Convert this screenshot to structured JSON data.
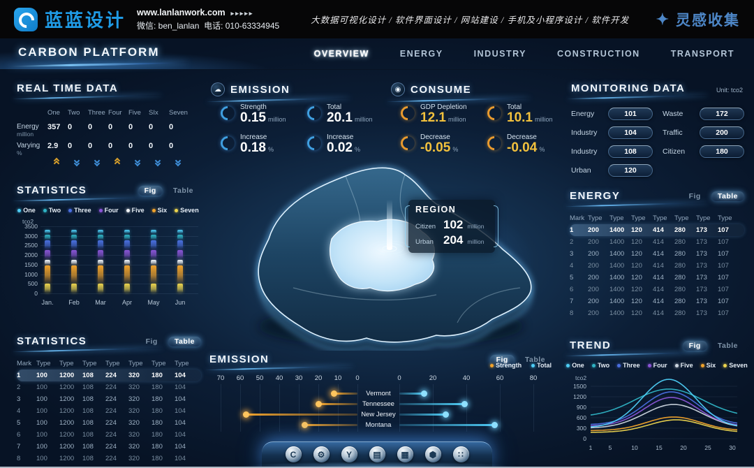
{
  "header": {
    "brand": "蓝蓝设计",
    "website": "www.lanlanwork.com",
    "arrows": "▸▸▸▸▸",
    "wechat": "微信: ben_lanlan",
    "phone": "电话: 010-63334945",
    "services": "大数据可视化设计 / 软件界面设计 / 网站建设 / 手机及小程序设计 / 软件开发",
    "collect": "灵感收集",
    "spark_icon": "✦"
  },
  "nav": {
    "title": "CARBON PLATFORM",
    "items": [
      {
        "label": "OVERVIEW",
        "active": true
      },
      {
        "label": "ENERGY",
        "active": false
      },
      {
        "label": "INDUSTRY",
        "active": false
      },
      {
        "label": "CONSTRUCTION",
        "active": false
      },
      {
        "label": "TRANSPORT",
        "active": false
      }
    ]
  },
  "realtime": {
    "title": "REAL TIME DATA",
    "columns": [
      "One",
      "Two",
      "Three",
      "Four",
      "Five",
      "SIx",
      "Seven"
    ],
    "rows": [
      {
        "label": "Energy",
        "unit": "million",
        "values": [
          "357",
          "0",
          "0",
          "0",
          "0",
          "0",
          "0"
        ]
      },
      {
        "label": "Varying",
        "unit": "%",
        "values": [
          "2.9",
          "0",
          "0",
          "0",
          "0",
          "0",
          "0"
        ]
      }
    ],
    "trends": [
      "up",
      "down",
      "down",
      "up",
      "down",
      "down",
      "down"
    ]
  },
  "statistics_fig": {
    "title": "STATISTICS",
    "fig": "Fig",
    "table": "Table",
    "active": "fig"
  },
  "statistics_table": {
    "title": "STATISTICS",
    "fig": "Fig",
    "table": "Table",
    "active": "table",
    "headers": [
      "Mark",
      "Type",
      "Type",
      "Type",
      "Type",
      "Type",
      "Type",
      "Type"
    ],
    "rows": [
      [
        "1",
        "100",
        "1200",
        "108",
        "224",
        "320",
        "180",
        "104"
      ],
      [
        "2",
        "100",
        "1200",
        "108",
        "224",
        "320",
        "180",
        "104"
      ],
      [
        "3",
        "100",
        "1200",
        "108",
        "224",
        "320",
        "180",
        "104"
      ],
      [
        "4",
        "100",
        "1200",
        "108",
        "224",
        "320",
        "180",
        "104"
      ],
      [
        "5",
        "100",
        "1200",
        "108",
        "224",
        "320",
        "180",
        "104"
      ],
      [
        "6",
        "100",
        "1200",
        "108",
        "224",
        "320",
        "180",
        "104"
      ],
      [
        "7",
        "100",
        "1200",
        "108",
        "224",
        "320",
        "180",
        "104"
      ],
      [
        "8",
        "100",
        "1200",
        "108",
        "224",
        "320",
        "180",
        "104"
      ]
    ]
  },
  "emission_stats": {
    "title": "EMISSION",
    "badge_icon": "☁",
    "stats": [
      {
        "label": "Strength",
        "value": "0.15",
        "unit": "million"
      },
      {
        "label": "Total",
        "value": "20.1",
        "unit": "million"
      },
      {
        "label": "Increase",
        "value": "0.18",
        "unit": "%"
      },
      {
        "label": "Increase",
        "value": "0.02",
        "unit": "%"
      }
    ]
  },
  "consume_stats": {
    "title": "CONSUME",
    "badge_icon": "◉",
    "stats": [
      {
        "label": "GDP Depletion",
        "value": "12.1",
        "unit": "million"
      },
      {
        "label": "Total",
        "value": "10.1",
        "unit": "million"
      },
      {
        "label": "Decrease",
        "value": "-0.05",
        "unit": "%"
      },
      {
        "label": "Decrease",
        "value": "-0.04",
        "unit": "%"
      }
    ]
  },
  "region_popup": {
    "title": "REGION",
    "rows": [
      {
        "label": "Citizen",
        "value": "102",
        "unit": "million"
      },
      {
        "label": "Urban",
        "value": "204",
        "unit": "million"
      }
    ]
  },
  "monitoring": {
    "title": "MONITORING DATA",
    "unit": "Unit: tco2",
    "left": [
      [
        "Energy",
        "101"
      ],
      [
        "Industry",
        "104"
      ],
      [
        "Industry",
        "108"
      ],
      [
        "Urban",
        "120"
      ]
    ],
    "right": [
      [
        "Waste",
        "172"
      ],
      [
        "Traffic",
        "200"
      ],
      [
        "Citizen",
        "180"
      ]
    ]
  },
  "energy_table": {
    "title": "ENERGY",
    "fig": "Fig",
    "table": "Table",
    "active": "table",
    "headers": [
      "Mark",
      "Type",
      "Type",
      "Type",
      "Type",
      "Type",
      "Type",
      "Type"
    ],
    "rows": [
      [
        "1",
        "200",
        "1400",
        "120",
        "414",
        "280",
        "173",
        "107"
      ],
      [
        "2",
        "200",
        "1400",
        "120",
        "414",
        "280",
        "173",
        "107"
      ],
      [
        "3",
        "200",
        "1400",
        "120",
        "414",
        "280",
        "173",
        "107"
      ],
      [
        "4",
        "200",
        "1400",
        "120",
        "414",
        "280",
        "173",
        "107"
      ],
      [
        "5",
        "200",
        "1400",
        "120",
        "414",
        "280",
        "173",
        "107"
      ],
      [
        "6",
        "200",
        "1400",
        "120",
        "414",
        "280",
        "173",
        "107"
      ],
      [
        "7",
        "200",
        "1400",
        "120",
        "414",
        "280",
        "173",
        "107"
      ],
      [
        "8",
        "200",
        "1400",
        "120",
        "414",
        "280",
        "173",
        "107"
      ]
    ]
  },
  "emission_chart_panel": {
    "title": "EMISSION",
    "fig": "Fig",
    "table": "Table",
    "active": "fig"
  },
  "trend_panel": {
    "title": "TREND",
    "fig": "Fig",
    "table": "Table",
    "active": "fig"
  },
  "dock": {
    "icons": [
      {
        "name": "hex-c-icon",
        "glyph": "C"
      },
      {
        "name": "gear-icon",
        "glyph": "⚙"
      },
      {
        "name": "y-badge-icon",
        "glyph": "Y"
      },
      {
        "name": "building-icon",
        "glyph": "▤"
      },
      {
        "name": "monitor-chart-icon",
        "glyph": "▦"
      },
      {
        "name": "nut-icon",
        "glyph": "⬢"
      },
      {
        "name": "apps-grid-icon",
        "glyph": "∷"
      }
    ]
  },
  "chart_data": [
    {
      "id": "statistics_monthly",
      "type": "bar",
      "title": "STATISTICS",
      "ylabel": "tco2",
      "categories": [
        "Jan.",
        "Feb",
        "Mar",
        "Apr",
        "May",
        "Jun"
      ],
      "yticks": [
        0,
        500,
        1000,
        1500,
        2000,
        2500,
        3000,
        3500
      ],
      "ylim": [
        0,
        3500
      ],
      "grid": true,
      "legend_position": "top",
      "note": "Each month shows the same stacked segment column; segment = [low, high] in tco2",
      "series": [
        {
          "name": "One",
          "color": "#4ecdf5",
          "segment": [
            3130,
            3310
          ]
        },
        {
          "name": "Two",
          "color": "#2fb3c4",
          "segment": [
            2820,
            3070
          ]
        },
        {
          "name": "Three",
          "color": "#4a6fe0",
          "segment": [
            2320,
            2760
          ]
        },
        {
          "name": "Four",
          "color": "#8a55d6",
          "segment": [
            1820,
            2260
          ]
        },
        {
          "name": "Five",
          "color": "#f2f5f8",
          "segment": [
            1510,
            1760
          ]
        },
        {
          "name": "Six",
          "color": "#f0a22b",
          "segment": [
            560,
            1450
          ]
        },
        {
          "name": "Seven",
          "color": "#ecd44e",
          "segment": [
            30,
            500
          ]
        }
      ]
    },
    {
      "id": "emission_by_state",
      "type": "bar",
      "layout": "diverging",
      "title": "EMISSION",
      "categories": [
        "Vermont",
        "Tennessee",
        "New Jersey",
        "Montana"
      ],
      "series": [
        {
          "name": "Strength",
          "color": "#f0a22b",
          "values": [
            12,
            20,
            57,
            27
          ]
        },
        {
          "name": "Total",
          "color": "#4ecdf5",
          "values": [
            15,
            39,
            28,
            57
          ]
        }
      ],
      "left_axis_ticks": [
        70,
        60,
        50,
        40,
        30,
        20,
        10,
        0
      ],
      "right_axis_ticks": [
        0,
        20,
        40,
        60,
        80
      ]
    },
    {
      "id": "trend_curves",
      "type": "line",
      "title": "TREND",
      "ylabel": "tco2",
      "xticks": [
        1,
        5,
        10,
        15,
        20,
        25,
        30
      ],
      "yticks": [
        0,
        300,
        600,
        900,
        1200,
        1500
      ],
      "xlim": [
        1,
        31
      ],
      "ylim": [
        0,
        1800
      ],
      "note": "Bell curves; series described by gaussian fit read from figure",
      "series": [
        {
          "name": "One",
          "color": "#4ecdf5",
          "peak": 1700,
          "base": 320,
          "center": 17,
          "width": 5.5
        },
        {
          "name": "Two",
          "color": "#2fb3c4",
          "peak": 1420,
          "base": 620,
          "center": 17,
          "width": 7
        },
        {
          "name": "Three",
          "color": "#4a6fe0",
          "peak": 1340,
          "base": 400,
          "center": 17.5,
          "width": 5.5
        },
        {
          "name": "Four",
          "color": "#8a55d6",
          "peak": 1180,
          "base": 360,
          "center": 17.5,
          "width": 5.5
        },
        {
          "name": "Five",
          "color": "#cdd6e0",
          "peak": 980,
          "base": 300,
          "center": 18,
          "width": 6
        },
        {
          "name": "Six",
          "color": "#f0a22b",
          "peak": 620,
          "base": 230,
          "center": 18,
          "width": 5.5
        },
        {
          "name": "Seven",
          "color": "#ecd44e",
          "peak": 540,
          "base": 180,
          "center": 18.5,
          "width": 5.5
        }
      ]
    }
  ]
}
